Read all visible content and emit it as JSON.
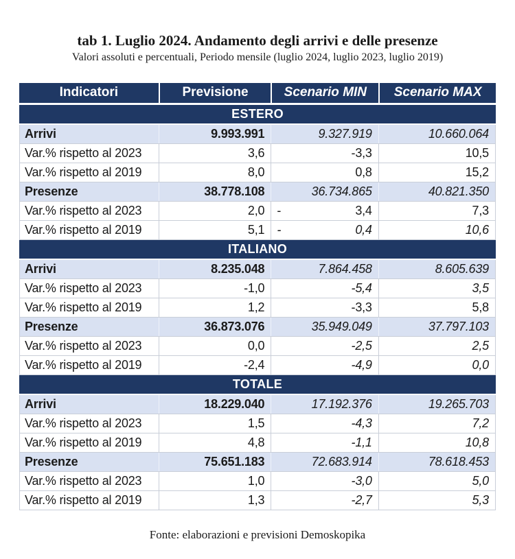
{
  "page": {
    "title": "tab 1. Luglio 2024. Andamento degli arrivi e delle presenze",
    "subtitle": "Valori assoluti e percentuali, Periodo mensile (luglio 2024, luglio 2023, luglio 2019)",
    "footer": "Fonte: elaborazioni e previsioni Demoskopika"
  },
  "colors": {
    "header_bg": "#1F3864",
    "header_text": "#FFFFFF",
    "shaded_bg": "#D9E1F2",
    "row_border": "#C9CED8",
    "text": "#1A1A1A"
  },
  "table": {
    "columns": [
      {
        "label": "Indicatori"
      },
      {
        "label": "Previsione"
      },
      {
        "label": "Scenario MIN"
      },
      {
        "label": "Scenario MAX"
      }
    ],
    "sections": [
      {
        "title": "ESTERO",
        "rows": [
          {
            "label": "Arrivi",
            "previsione": "9.993.991",
            "min": "9.327.919",
            "max": "10.660.064"
          },
          {
            "label": "Var.% rispetto al 2023",
            "previsione": "3,6",
            "min": "-3,3",
            "max": "10,5"
          },
          {
            "label": "Var.% rispetto al 2019",
            "previsione": "8,0",
            "min": "0,8",
            "max": "15,2"
          },
          {
            "label": "Presenze",
            "previsione": "38.778.108",
            "min": "36.734.865",
            "max": "40.821.350"
          },
          {
            "label": "Var.% rispetto al 2023",
            "previsione": "2,0",
            "min_sign": "-",
            "min": "3,4",
            "max": "7,3"
          },
          {
            "label": "Var.% rispetto al 2019",
            "previsione": "5,1",
            "min_sign": "-",
            "min": "0,4",
            "max": "10,6"
          }
        ]
      },
      {
        "title": "ITALIANO",
        "rows": [
          {
            "label": "Arrivi",
            "previsione": "8.235.048",
            "min": "7.864.458",
            "max": "8.605.639"
          },
          {
            "label": "Var.% rispetto al 2023",
            "previsione": "-1,0",
            "min": "-5,4",
            "max": "3,5"
          },
          {
            "label": "Var.% rispetto al 2019",
            "previsione": "1,2",
            "min": "-3,3",
            "max": "5,8"
          },
          {
            "label": "Presenze",
            "previsione": "36.873.076",
            "min": "35.949.049",
            "max": "37.797.103"
          },
          {
            "label": "Var.% rispetto al 2023",
            "previsione": "0,0",
            "min": "-2,5",
            "max": "2,5"
          },
          {
            "label": "Var.% rispetto al 2019",
            "previsione": "-2,4",
            "min": "-4,9",
            "max": "0,0"
          }
        ]
      },
      {
        "title": "TOTALE",
        "rows": [
          {
            "label": "Arrivi",
            "previsione": "18.229.040",
            "min": "17.192.376",
            "max": "19.265.703"
          },
          {
            "label": "Var.% rispetto al 2023",
            "previsione": "1,5",
            "min": "-4,3",
            "max": "7,2"
          },
          {
            "label": "Var.% rispetto al 2019",
            "previsione": "4,8",
            "min": "-1,1",
            "max": "10,8"
          },
          {
            "label": "Presenze",
            "previsione": "75.651.183",
            "min": "72.683.914",
            "max": "78.618.453"
          },
          {
            "label": "Var.% rispetto al 2023",
            "previsione": "1,0",
            "min": "-3,0",
            "max": "5,0"
          },
          {
            "label": "Var.% rispetto al 2019",
            "previsione": "1,3",
            "min": "-2,7",
            "max": "5,3"
          }
        ]
      }
    ]
  }
}
